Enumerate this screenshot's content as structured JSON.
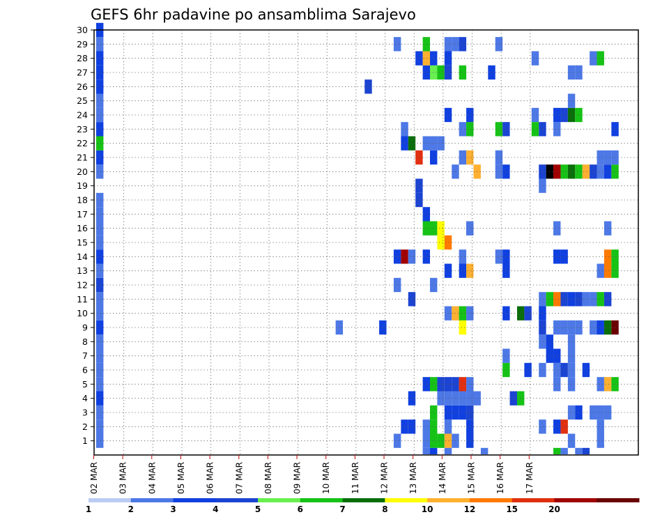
{
  "chart_data": {
    "type": "heatmap",
    "title": "GEFS 6hr padavine po ansamblima Sarajevo",
    "x_ticks": [
      "02 MAR",
      "03 MAR",
      "04 MAR",
      "05 MAR",
      "06 MAR",
      "07 MAR",
      "08 MAR",
      "09 MAR",
      "10 MAR",
      "11 MAR",
      "12 MAR",
      "13 MAR",
      "14 MAR",
      "15 MAR",
      "16 MAR",
      "17 MAR"
    ],
    "x_unit": "6h steps from 02 MAR 00Z",
    "y_ticks": [
      "1",
      "2",
      "3",
      "4",
      "5",
      "6",
      "7",
      "8",
      "9",
      "10",
      "11",
      "12",
      "13",
      "14",
      "15",
      "16",
      "17",
      "18",
      "19",
      "20",
      "21",
      "22",
      "23",
      "24",
      "25",
      "26",
      "27",
      "28",
      "29",
      "30"
    ],
    "ylim": [
      0,
      30
    ],
    "grid": true,
    "legend": "bottom colorbar",
    "levels": [
      "1",
      "2",
      "3",
      "4",
      "5",
      "6",
      "7",
      "8",
      "10",
      "12",
      "15",
      "20"
    ],
    "colors": [
      "#bbccf2",
      "#4d78e6",
      "#1040e0",
      "#1b44d2",
      "#68ef50",
      "#16c216",
      "#0a6e0a",
      "#ffff00",
      "#ffb030",
      "#ff7a00",
      "#e03010",
      "#a00000",
      "#6a0000"
    ],
    "cells": [
      [
        0,
        1,
        1
      ],
      [
        0,
        2,
        1
      ],
      [
        0,
        3,
        1
      ],
      [
        0,
        4,
        2
      ],
      [
        0,
        5,
        1
      ],
      [
        0,
        6,
        1
      ],
      [
        0,
        7,
        1
      ],
      [
        0,
        8,
        1
      ],
      [
        0,
        9,
        2
      ],
      [
        0,
        10,
        1
      ],
      [
        0,
        11,
        1
      ],
      [
        0,
        12,
        3
      ],
      [
        0,
        13,
        1
      ],
      [
        0,
        14,
        2
      ],
      [
        0,
        15,
        1
      ],
      [
        0,
        16,
        1
      ],
      [
        0,
        17,
        1
      ],
      [
        0,
        18,
        1
      ],
      [
        0,
        20,
        1
      ],
      [
        0,
        21,
        2
      ],
      [
        0,
        22,
        5
      ],
      [
        0,
        23,
        2
      ],
      [
        0,
        24,
        1
      ],
      [
        0,
        25,
        1
      ],
      [
        0,
        26,
        2
      ],
      [
        0,
        27,
        2
      ],
      [
        0,
        28,
        2
      ],
      [
        0,
        29,
        1
      ],
      [
        0,
        30,
        2
      ],
      [
        33,
        9,
        1
      ],
      [
        37,
        26,
        3
      ],
      [
        39,
        9,
        2
      ],
      [
        41,
        1,
        1
      ],
      [
        41,
        14,
        2
      ],
      [
        41,
        12,
        1
      ],
      [
        41,
        29,
        1
      ],
      [
        42,
        2,
        2
      ],
      [
        42,
        14,
        11
      ],
      [
        42,
        22,
        2
      ],
      [
        42,
        23,
        1
      ],
      [
        43,
        2,
        2
      ],
      [
        43,
        4,
        2
      ],
      [
        43,
        11,
        3
      ],
      [
        43,
        14,
        1
      ],
      [
        43,
        22,
        6
      ],
      [
        44,
        18,
        3
      ],
      [
        44,
        19,
        3
      ],
      [
        44,
        21,
        10
      ],
      [
        44,
        28,
        2
      ],
      [
        45,
        1,
        1
      ],
      [
        45,
        2,
        1
      ],
      [
        45,
        5,
        2
      ],
      [
        45,
        14,
        2
      ],
      [
        45,
        16,
        5
      ],
      [
        45,
        17,
        2
      ],
      [
        45,
        22,
        1
      ],
      [
        45,
        27,
        2
      ],
      [
        45,
        28,
        8
      ],
      [
        45,
        29,
        5
      ],
      [
        46,
        1,
        5
      ],
      [
        46,
        2,
        5
      ],
      [
        46,
        3,
        5
      ],
      [
        46,
        5,
        5
      ],
      [
        46,
        12,
        1
      ],
      [
        46,
        16,
        5
      ],
      [
        46,
        21,
        2
      ],
      [
        46,
        22,
        1
      ],
      [
        46,
        27,
        4
      ],
      [
        46,
        28,
        2
      ],
      [
        47,
        1,
        5
      ],
      [
        47,
        4,
        1
      ],
      [
        47,
        5,
        3
      ],
      [
        47,
        15,
        7
      ],
      [
        47,
        16,
        7
      ],
      [
        47,
        22,
        1
      ],
      [
        47,
        27,
        5
      ],
      [
        48,
        1,
        8
      ],
      [
        48,
        2,
        1
      ],
      [
        48,
        3,
        2
      ],
      [
        48,
        4,
        1
      ],
      [
        48,
        5,
        3
      ],
      [
        48,
        10,
        1
      ],
      [
        48,
        13,
        2
      ],
      [
        48,
        15,
        9
      ],
      [
        48,
        24,
        2
      ],
      [
        48,
        27,
        3
      ],
      [
        48,
        28,
        2
      ],
      [
        48,
        29,
        1
      ],
      [
        49,
        1,
        1
      ],
      [
        49,
        3,
        2
      ],
      [
        49,
        4,
        1
      ],
      [
        49,
        5,
        3
      ],
      [
        49,
        10,
        8
      ],
      [
        49,
        20,
        1
      ],
      [
        49,
        29,
        1
      ],
      [
        50,
        3,
        2
      ],
      [
        50,
        4,
        1
      ],
      [
        50,
        5,
        10
      ],
      [
        50,
        9,
        7
      ],
      [
        50,
        10,
        5
      ],
      [
        50,
        13,
        2
      ],
      [
        50,
        14,
        1
      ],
      [
        50,
        21,
        1
      ],
      [
        50,
        23,
        1
      ],
      [
        50,
        27,
        5
      ],
      [
        50,
        29,
        3
      ],
      [
        51,
        1,
        2
      ],
      [
        51,
        2,
        2
      ],
      [
        51,
        3,
        3
      ],
      [
        51,
        4,
        1
      ],
      [
        51,
        5,
        1
      ],
      [
        51,
        10,
        1
      ],
      [
        51,
        13,
        8
      ],
      [
        51,
        16,
        1
      ],
      [
        51,
        21,
        8
      ],
      [
        51,
        23,
        5
      ],
      [
        51,
        24,
        2
      ],
      [
        51,
        16,
        1
      ],
      [
        52,
        4,
        1
      ],
      [
        52,
        20,
        8
      ],
      [
        54,
        27,
        2
      ],
      [
        55,
        20,
        1
      ],
      [
        55,
        21,
        1
      ],
      [
        55,
        14,
        1
      ],
      [
        55,
        23,
        5
      ],
      [
        55,
        29,
        1
      ],
      [
        56,
        6,
        5
      ],
      [
        56,
        7,
        1
      ],
      [
        56,
        10,
        2
      ],
      [
        56,
        13,
        2
      ],
      [
        56,
        14,
        2
      ],
      [
        56,
        20,
        2
      ],
      [
        56,
        23,
        3
      ],
      [
        57,
        4,
        3
      ],
      [
        58,
        4,
        5
      ],
      [
        58,
        10,
        6
      ],
      [
        59,
        6,
        2
      ],
      [
        59,
        10,
        3
      ],
      [
        60,
        24,
        1
      ],
      [
        60,
        28,
        1
      ],
      [
        60,
        23,
        5
      ],
      [
        61,
        2,
        1
      ],
      [
        61,
        6,
        1
      ],
      [
        61,
        8,
        1
      ],
      [
        61,
        9,
        3
      ],
      [
        61,
        10,
        2
      ],
      [
        61,
        11,
        1
      ],
      [
        61,
        19,
        1
      ],
      [
        61,
        20,
        3
      ],
      [
        61,
        23,
        3
      ],
      [
        62,
        7,
        2
      ],
      [
        62,
        8,
        2
      ],
      [
        62,
        11,
        5
      ],
      [
        62,
        20,
        13
      ],
      [
        63,
        2,
        2
      ],
      [
        63,
        5,
        1
      ],
      [
        63,
        6,
        1
      ],
      [
        63,
        7,
        2
      ],
      [
        63,
        9,
        1
      ],
      [
        63,
        11,
        9
      ],
      [
        63,
        14,
        2
      ],
      [
        63,
        20,
        11
      ],
      [
        63,
        23,
        1
      ],
      [
        63,
        24,
        2
      ],
      [
        63,
        16,
        1
      ],
      [
        64,
        2,
        10
      ],
      [
        64,
        6,
        3
      ],
      [
        64,
        9,
        1
      ],
      [
        64,
        11,
        3
      ],
      [
        64,
        14,
        2
      ],
      [
        64,
        20,
        5
      ],
      [
        64,
        24,
        3
      ],
      [
        65,
        1,
        1
      ],
      [
        65,
        3,
        1
      ],
      [
        65,
        5,
        1
      ],
      [
        65,
        6,
        1
      ],
      [
        65,
        7,
        1
      ],
      [
        65,
        8,
        1
      ],
      [
        65,
        9,
        1
      ],
      [
        65,
        11,
        2
      ],
      [
        65,
        20,
        6
      ],
      [
        65,
        24,
        6
      ],
      [
        65,
        25,
        1
      ],
      [
        65,
        27,
        1
      ],
      [
        66,
        3,
        2
      ],
      [
        66,
        9,
        1
      ],
      [
        66,
        11,
        3
      ],
      [
        66,
        20,
        5
      ],
      [
        66,
        24,
        5
      ],
      [
        66,
        27,
        1
      ],
      [
        67,
        6,
        2
      ],
      [
        67,
        11,
        1
      ],
      [
        67,
        20,
        8
      ],
      [
        68,
        3,
        1
      ],
      [
        68,
        9,
        1
      ],
      [
        68,
        11,
        1
      ],
      [
        68,
        20,
        3
      ],
      [
        68,
        28,
        1
      ],
      [
        69,
        1,
        1
      ],
      [
        69,
        2,
        1
      ],
      [
        69,
        3,
        1
      ],
      [
        69,
        5,
        1
      ],
      [
        69,
        9,
        2
      ],
      [
        69,
        11,
        5
      ],
      [
        69,
        13,
        1
      ],
      [
        69,
        20,
        1
      ],
      [
        69,
        21,
        1
      ],
      [
        69,
        28,
        5
      ],
      [
        70,
        3,
        1
      ],
      [
        70,
        5,
        8
      ],
      [
        70,
        9,
        6
      ],
      [
        70,
        11,
        3
      ],
      [
        70,
        13,
        9
      ],
      [
        70,
        14,
        9
      ],
      [
        70,
        16,
        1
      ],
      [
        70,
        20,
        2
      ],
      [
        70,
        21,
        1
      ],
      [
        71,
        5,
        5
      ],
      [
        71,
        9,
        12
      ],
      [
        71,
        13,
        5
      ],
      [
        71,
        14,
        5
      ],
      [
        71,
        20,
        5
      ],
      [
        71,
        21,
        1
      ],
      [
        71,
        23,
        2
      ]
    ],
    "bottom_row": [
      [
        45,
        1
      ],
      [
        46,
        2
      ],
      [
        48,
        1
      ],
      [
        53,
        1
      ],
      [
        63,
        5
      ],
      [
        64,
        1
      ],
      [
        66,
        1
      ],
      [
        67,
        3
      ]
    ]
  }
}
